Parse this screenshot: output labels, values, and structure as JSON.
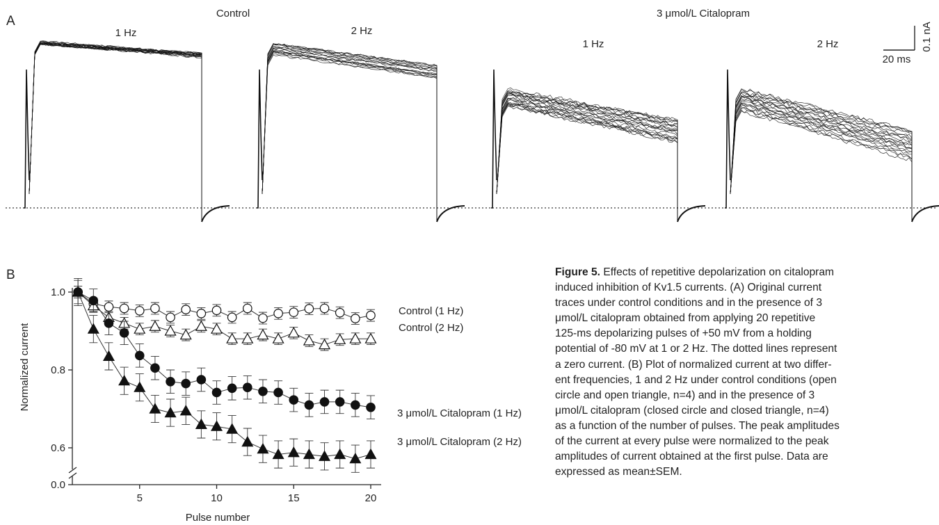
{
  "panel_a": {
    "label": "A",
    "group_control": "Control",
    "group_drug": "3 μmol/L Citalopram",
    "traces": [
      {
        "freq_label": "1 Hz"
      },
      {
        "freq_label": "2 Hz"
      },
      {
        "freq_label": "1 Hz"
      },
      {
        "freq_label": "2 Hz"
      }
    ],
    "scale_bar": {
      "current_label": "0.1 nA",
      "time_label": "20 ms"
    }
  },
  "panel_b": {
    "label": "B"
  },
  "chart_data": {
    "type": "scatter",
    "xlabel": "Pulse number",
    "ylabel": "Normalized current",
    "xlim": [
      0,
      20
    ],
    "ylim": [
      0.5,
      1.0
    ],
    "axis_break": true,
    "x_ticks": [
      5,
      10,
      15,
      20
    ],
    "y_ticks": [
      {
        "value": 0.0,
        "label": "0.0"
      },
      {
        "value": 0.6,
        "label": "0.6"
      },
      {
        "value": 0.8,
        "label": "0.8"
      },
      {
        "value": 1.0,
        "label": "1.0"
      }
    ],
    "x": [
      1,
      2,
      3,
      4,
      5,
      6,
      7,
      8,
      9,
      10,
      11,
      12,
      13,
      14,
      15,
      16,
      17,
      18,
      19,
      20
    ],
    "series": [
      {
        "name": "Control (1 Hz)",
        "marker": "open-circle",
        "values": [
          1.0,
          0.97,
          0.962,
          0.958,
          0.952,
          0.958,
          0.935,
          0.955,
          0.945,
          0.953,
          0.935,
          0.958,
          0.933,
          0.945,
          0.948,
          0.957,
          0.958,
          0.947,
          0.932,
          0.94
        ],
        "sem": 0.015
      },
      {
        "name": "Control (2 Hz)",
        "marker": "open-triangle",
        "values": [
          1.0,
          0.965,
          0.935,
          0.92,
          0.905,
          0.912,
          0.9,
          0.89,
          0.912,
          0.905,
          0.88,
          0.88,
          0.89,
          0.88,
          0.895,
          0.875,
          0.865,
          0.878,
          0.88,
          0.88
        ],
        "sem": 0.015
      },
      {
        "name": "3 μmol/L Citalopram (1 Hz)",
        "marker": "closed-circle",
        "values": [
          1.0,
          0.978,
          0.92,
          0.895,
          0.837,
          0.805,
          0.77,
          0.765,
          0.775,
          0.742,
          0.753,
          0.755,
          0.745,
          0.742,
          0.723,
          0.71,
          0.718,
          0.718,
          0.71,
          0.704
        ],
        "sem": 0.03
      },
      {
        "name": "3 μmol/L Citalopram (2 Hz)",
        "marker": "closed-triangle",
        "values": [
          1.0,
          0.905,
          0.835,
          0.772,
          0.755,
          0.7,
          0.69,
          0.695,
          0.66,
          0.655,
          0.648,
          0.615,
          0.597,
          0.583,
          0.588,
          0.583,
          0.578,
          0.583,
          0.572,
          0.583
        ],
        "sem": 0.035
      }
    ]
  },
  "caption": {
    "lines": [
      {
        "bold": "Figure 5.",
        "text": " Effects of repetitive depolarization on citalopram"
      },
      {
        "bold": "",
        "text": "induced inhibition of Kv1.5 currents.  (A) Original current"
      },
      {
        "bold": "",
        "text": "traces under control conditions and in the presence of 3"
      },
      {
        "bold": "",
        "text": "μmol/L citalopram obtained from applying 20 repetitive"
      },
      {
        "bold": "",
        "text": "125-ms depolarizing pulses of +50 mV from a holding"
      },
      {
        "bold": "",
        "text": "potential of -80 mV at 1 or 2 Hz.  The dotted lines represent"
      },
      {
        "bold": "",
        "text": "a zero current.  (B) Plot of normalized current at two differ-"
      },
      {
        "bold": "",
        "text": "ent frequencies, 1 and 2 Hz under control conditions (open"
      },
      {
        "bold": "",
        "text": "circle and open triangle, n=4) and in the presence of 3"
      },
      {
        "bold": "",
        "text": "μmol/L citalopram (closed circle and closed triangle, n=4)"
      },
      {
        "bold": "",
        "text": "as a function of the number of pulses.  The peak amplitudes"
      },
      {
        "bold": "",
        "text": "of the current at every pulse were normalized to the peak"
      },
      {
        "bold": "",
        "text": "amplitudes of current obtained at the first pulse.  Data are"
      },
      {
        "bold": "",
        "text": "expressed as mean±SEM."
      }
    ]
  }
}
